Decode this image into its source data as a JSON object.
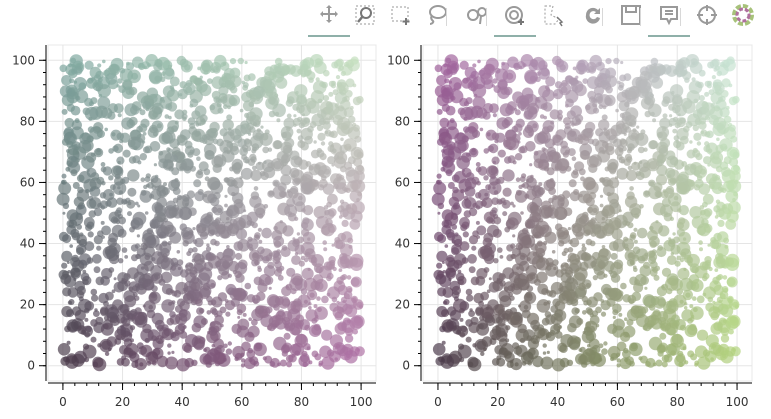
{
  "toolbar": {
    "tools": [
      {
        "name": "pan-tool",
        "icon": "pan-icon",
        "active": true
      },
      {
        "name": "box-zoom-tool",
        "icon": "box-zoom-icon",
        "active": false
      },
      {
        "name": "box-select-tool",
        "icon": "box-select-icon",
        "active": false
      },
      {
        "name": "lasso-select-tool",
        "icon": "lasso-icon",
        "active": false
      },
      {
        "name": "zoom-in-tool",
        "icon": "zoom-in-icon",
        "active": false
      },
      {
        "name": "wheel-zoom-tool",
        "icon": "wheel-zoom-icon",
        "active": true
      },
      {
        "name": "poly-select-tool",
        "icon": "poly-select-icon",
        "active": false
      },
      {
        "name": "reset-tool",
        "icon": "reset-icon",
        "active": false
      },
      {
        "name": "save-tool",
        "icon": "save-icon",
        "active": false
      },
      {
        "name": "hover-tool",
        "icon": "hover-icon",
        "active": true
      },
      {
        "name": "crosshair-tool",
        "icon": "crosshair-icon",
        "active": false
      },
      {
        "name": "bokeh-logo",
        "icon": "bokeh-logo-icon",
        "active": false
      }
    ]
  },
  "chart_data": [
    {
      "type": "scatter",
      "title": "",
      "xlabel": "",
      "ylabel": "",
      "xlim": [
        -5,
        105
      ],
      "ylim": [
        -5,
        105
      ],
      "xticks": [
        "0",
        "20",
        "40",
        "60",
        "80",
        "100"
      ],
      "yticks": [
        "0",
        "20",
        "40",
        "60",
        "80",
        "100"
      ],
      "grid": true,
      "point_count_approx": 1800,
      "radius_range": [
        0.5,
        2.3
      ],
      "color_mapping": "uniform random x, y in 0–100; color varies with x and y position (dark purple near origin, mauve toward high x, teal toward high y, light green at top right)",
      "colors": {
        "origin": "#4a3a4a",
        "high_x": "#b070a6",
        "high_y": "#7fa8a0",
        "high_xy": "#c6e0c0"
      }
    },
    {
      "type": "scatter",
      "title": "",
      "xlabel": "",
      "ylabel": "",
      "xlim": [
        -5,
        105
      ],
      "ylim": [
        -5,
        105
      ],
      "xticks": [
        "0",
        "20",
        "40",
        "60",
        "80",
        "100"
      ],
      "yticks": [
        "0",
        "20",
        "40",
        "60",
        "80",
        "100"
      ],
      "grid": true,
      "point_count_approx": 1800,
      "radius_range": [
        0.5,
        2.3
      ],
      "color_mapping": "same points as left plot; color varies with x and y position (dark purple near origin, green toward high x, purple toward high y, light mint at top right)",
      "colors": {
        "origin": "#4a3a4a",
        "high_x": "#b4d47c",
        "high_y": "#a0609c",
        "high_xy": "#c8e6d4"
      }
    }
  ]
}
